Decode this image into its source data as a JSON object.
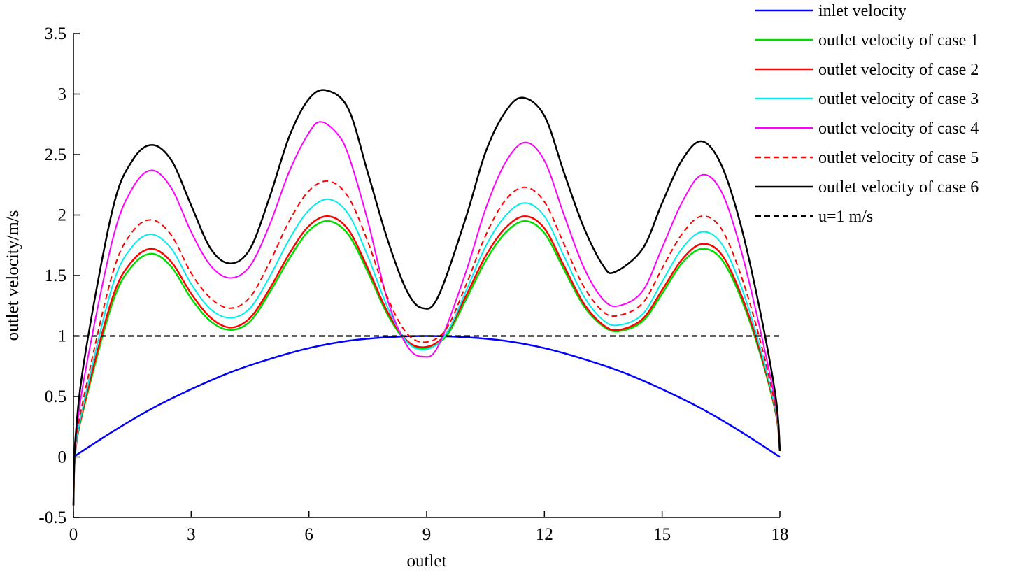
{
  "chart_data": {
    "type": "line",
    "title": "",
    "xlabel": "outlet",
    "ylabel": "outlet velocity/m/s",
    "xlim": [
      0,
      18
    ],
    "ylim": [
      -0.5,
      3.5
    ],
    "xticks": [
      0,
      3,
      6,
      9,
      12,
      15,
      18
    ],
    "xtick_labels": [
      "0",
      "3",
      "6",
      "9",
      "12",
      "15",
      "18"
    ],
    "yticks": [
      -0.5,
      0,
      0.5,
      1,
      1.5,
      2,
      2.5,
      3,
      3.5
    ],
    "ytick_labels": [
      "-0.5",
      "0",
      "0.5",
      "1",
      "1.5",
      "2",
      "2.5",
      "3",
      "3.5"
    ],
    "grid": false,
    "legend_position": "outside-top-right",
    "series": [
      {
        "name": "inlet velocity",
        "color": "#0000ff",
        "dash": "solid",
        "x": [
          0,
          1,
          2,
          3,
          4,
          5,
          6,
          7,
          8,
          9,
          10,
          11,
          12,
          13,
          14,
          15,
          16,
          17,
          18
        ],
        "y": [
          0.0,
          0.21,
          0.4,
          0.56,
          0.7,
          0.81,
          0.9,
          0.96,
          0.99,
          1.0,
          0.99,
          0.96,
          0.9,
          0.81,
          0.7,
          0.56,
          0.4,
          0.21,
          0.0
        ]
      },
      {
        "name": "outlet velocity of case 1",
        "color": "#00dd00",
        "dash": "solid",
        "x": [
          0,
          0.05,
          0.3,
          1.0,
          1.5,
          2.0,
          2.5,
          3.0,
          3.5,
          4.0,
          4.5,
          5.0,
          5.5,
          6.0,
          6.5,
          7.0,
          7.5,
          8.0,
          8.5,
          9.0,
          9.5,
          10.0,
          10.5,
          11.0,
          11.5,
          12.0,
          12.5,
          13.0,
          13.5,
          13.9,
          14.5,
          15.0,
          15.5,
          16.0,
          16.5,
          17.0,
          17.5,
          17.9,
          18.0
        ],
        "y": [
          -0.4,
          0.05,
          0.45,
          1.28,
          1.58,
          1.68,
          1.57,
          1.31,
          1.12,
          1.05,
          1.12,
          1.36,
          1.64,
          1.87,
          1.95,
          1.84,
          1.53,
          1.18,
          0.95,
          0.9,
          1.0,
          1.3,
          1.62,
          1.85,
          1.95,
          1.85,
          1.55,
          1.25,
          1.08,
          1.04,
          1.12,
          1.35,
          1.6,
          1.72,
          1.64,
          1.32,
          0.85,
          0.35,
          0.05
        ]
      },
      {
        "name": "outlet velocity of case 2",
        "color": "#ff0000",
        "dash": "solid",
        "x": [
          0,
          0.05,
          0.3,
          1.0,
          1.5,
          2.0,
          2.5,
          3.0,
          3.5,
          4.0,
          4.5,
          5.0,
          5.5,
          6.0,
          6.5,
          7.0,
          7.5,
          8.0,
          8.5,
          9.0,
          9.5,
          10.0,
          10.5,
          11.0,
          11.5,
          12.0,
          12.5,
          13.0,
          13.5,
          13.9,
          14.5,
          15.0,
          15.5,
          16.0,
          16.5,
          17.0,
          17.5,
          17.9,
          18.0
        ],
        "y": [
          -0.4,
          0.05,
          0.47,
          1.32,
          1.62,
          1.72,
          1.61,
          1.35,
          1.15,
          1.07,
          1.15,
          1.39,
          1.68,
          1.91,
          1.99,
          1.88,
          1.56,
          1.2,
          0.96,
          0.91,
          1.02,
          1.33,
          1.66,
          1.89,
          1.99,
          1.89,
          1.58,
          1.27,
          1.09,
          1.05,
          1.14,
          1.38,
          1.63,
          1.76,
          1.68,
          1.35,
          0.87,
          0.36,
          0.05
        ]
      },
      {
        "name": "outlet velocity of case 3",
        "color": "#00eeee",
        "dash": "solid",
        "x": [
          0,
          0.05,
          0.3,
          1.0,
          1.5,
          2.0,
          2.5,
          3.0,
          3.5,
          4.0,
          4.5,
          5.0,
          5.5,
          6.0,
          6.5,
          7.0,
          7.5,
          8.0,
          8.5,
          9.0,
          9.5,
          10.0,
          10.5,
          11.0,
          11.5,
          12.0,
          12.5,
          13.0,
          13.5,
          13.9,
          14.5,
          15.0,
          15.5,
          16.0,
          16.5,
          17.0,
          17.5,
          17.9,
          18.0
        ],
        "y": [
          -0.4,
          0.05,
          0.5,
          1.42,
          1.74,
          1.84,
          1.72,
          1.43,
          1.22,
          1.15,
          1.23,
          1.49,
          1.8,
          2.04,
          2.13,
          2.01,
          1.66,
          1.24,
          0.95,
          0.89,
          1.02,
          1.37,
          1.74,
          1.99,
          2.1,
          1.99,
          1.66,
          1.33,
          1.13,
          1.09,
          1.18,
          1.45,
          1.72,
          1.86,
          1.77,
          1.42,
          0.9,
          0.37,
          0.05
        ]
      },
      {
        "name": "outlet velocity of case 4",
        "color": "#ff00ff",
        "dash": "solid",
        "x": [
          0,
          0.05,
          0.3,
          1.0,
          1.5,
          2.0,
          2.5,
          3.0,
          3.5,
          4.0,
          4.5,
          5.0,
          5.5,
          6.0,
          6.3,
          6.7,
          7.0,
          7.5,
          8.0,
          8.5,
          8.9,
          9.3,
          10.0,
          10.5,
          11.0,
          11.5,
          12.0,
          12.5,
          13.0,
          13.5,
          13.9,
          14.5,
          15.0,
          15.5,
          16.0,
          16.5,
          17.0,
          17.5,
          17.9,
          18.0
        ],
        "y": [
          -0.4,
          0.1,
          0.7,
          1.8,
          2.22,
          2.37,
          2.22,
          1.86,
          1.58,
          1.48,
          1.58,
          1.92,
          2.36,
          2.68,
          2.77,
          2.68,
          2.5,
          1.95,
          1.3,
          0.92,
          0.83,
          0.92,
          1.53,
          2.05,
          2.43,
          2.6,
          2.45,
          2.0,
          1.57,
          1.3,
          1.25,
          1.37,
          1.73,
          2.1,
          2.33,
          2.2,
          1.72,
          1.05,
          0.42,
          0.05
        ]
      },
      {
        "name": "outlet velocity of case 5",
        "color": "#ff0000",
        "dash": "dashed",
        "x": [
          0,
          0.05,
          0.3,
          1.0,
          1.5,
          2.0,
          2.5,
          3.0,
          3.5,
          4.0,
          4.5,
          5.0,
          5.5,
          6.0,
          6.5,
          7.0,
          7.5,
          8.0,
          8.5,
          9.0,
          9.5,
          10.0,
          10.5,
          11.0,
          11.5,
          12.0,
          12.5,
          13.0,
          13.5,
          13.9,
          14.5,
          15.0,
          15.5,
          16.0,
          16.5,
          17.0,
          17.5,
          17.9,
          18.0
        ],
        "y": [
          -0.4,
          0.08,
          0.55,
          1.52,
          1.86,
          1.96,
          1.83,
          1.52,
          1.31,
          1.23,
          1.32,
          1.61,
          1.95,
          2.2,
          2.28,
          2.15,
          1.78,
          1.32,
          1.02,
          0.95,
          1.06,
          1.42,
          1.83,
          2.12,
          2.23,
          2.11,
          1.76,
          1.41,
          1.2,
          1.17,
          1.27,
          1.56,
          1.84,
          1.99,
          1.89,
          1.51,
          0.96,
          0.39,
          0.05
        ]
      },
      {
        "name": "outlet velocity of case 6",
        "color": "#000000",
        "dash": "solid",
        "x": [
          0,
          0.05,
          0.3,
          1.0,
          1.5,
          2.0,
          2.5,
          3.0,
          3.5,
          4.0,
          4.5,
          5.0,
          5.5,
          6.0,
          6.45,
          7.0,
          7.5,
          8.0,
          8.5,
          8.9,
          9.3,
          10.0,
          10.5,
          11.0,
          11.45,
          12.0,
          12.5,
          13.0,
          13.5,
          13.8,
          14.5,
          15.0,
          15.5,
          16.0,
          16.5,
          17.0,
          17.5,
          17.9,
          18.0
        ],
        "y": [
          -0.4,
          0.15,
          0.85,
          2.05,
          2.45,
          2.58,
          2.45,
          2.08,
          1.72,
          1.6,
          1.72,
          2.15,
          2.65,
          2.96,
          3.03,
          2.88,
          2.35,
          1.8,
          1.37,
          1.23,
          1.33,
          1.98,
          2.52,
          2.85,
          2.97,
          2.82,
          2.35,
          1.9,
          1.58,
          1.53,
          1.72,
          2.1,
          2.45,
          2.61,
          2.42,
          1.92,
          1.2,
          0.48,
          0.05
        ]
      },
      {
        "name": "u=1 m/s",
        "color": "#000000",
        "dash": "dashed",
        "x": [
          0,
          18
        ],
        "y": [
          1,
          1
        ]
      }
    ]
  }
}
